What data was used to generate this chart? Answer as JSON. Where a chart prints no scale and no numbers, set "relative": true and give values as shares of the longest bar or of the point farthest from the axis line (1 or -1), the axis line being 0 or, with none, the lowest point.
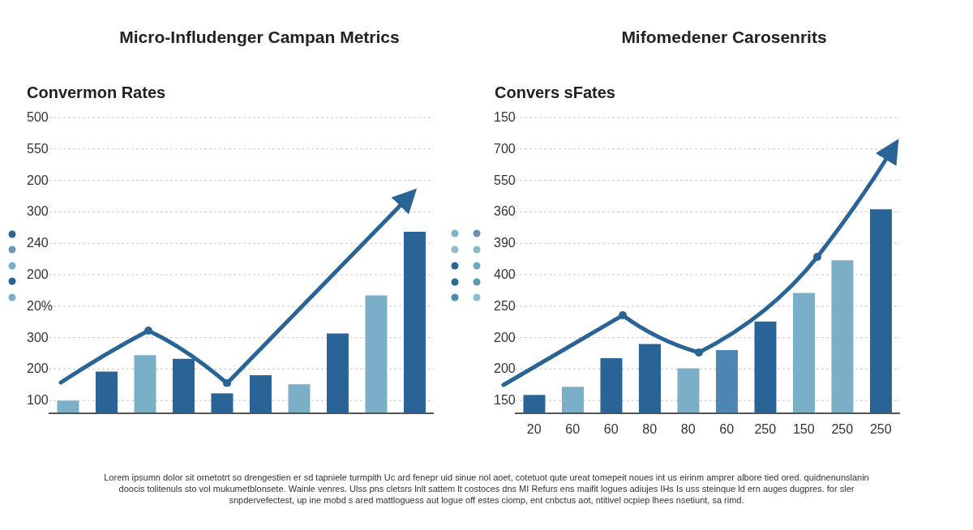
{
  "chart_data": [
    {
      "type": "bar",
      "title": "Micro-Infludenger Campan Metrics",
      "subtitle": "Convermon Rates",
      "categories": [
        null,
        null,
        null,
        null,
        null,
        null,
        null,
        null,
        null,
        null
      ],
      "values": [
        0.07,
        0.23,
        0.32,
        0.3,
        0.11,
        0.21,
        0.16,
        0.44,
        0.65,
        1
      ],
      "colors": [
        "#7aafc7",
        "#2a6496",
        "#7aafc7",
        "#2a6496",
        "#2a6496",
        "#2a6496",
        "#7aafc7",
        "#2a6496",
        "#7aafc7",
        "#2a6496"
      ],
      "relative": true,
      "grid": "y",
      "tick_labels": false,
      "annotations": [
        "500",
        "550",
        "200",
        "300",
        "240",
        "200",
        "20%",
        "300",
        "200",
        "100"
      ]
    },
    {
      "type": "bar",
      "title": "Mifomedener Carosenrits",
      "subtitle": "Convers sFates",
      "categories": [
        "20",
        "60",
        "60",
        "80",
        "80",
        "60",
        "250",
        "150",
        "250",
        "250"
      ],
      "values": [
        0.09,
        0.13,
        0.27,
        0.34,
        0.22,
        0.31,
        0.45,
        0.59,
        0.75,
        1
      ],
      "colors": [
        "#2a6496",
        "#7aafc7",
        "#2a6496",
        "#2a6496",
        "#7aafc7",
        "#4d86b3",
        "#2a6496",
        "#7aafc7",
        "#7aafc7",
        "#2a6496"
      ],
      "relative": true,
      "grid": "y",
      "tick_labels": "x",
      "annotations": [
        "150",
        "700",
        "550",
        "360",
        "390",
        "400",
        "250",
        "200",
        "200",
        "150",
        "Lorem ipsumn dolor sit ornetotrt so drengestien er sd tapniele turmpith Uc ard fenepr uid sinue nol aoet, cotetuot qute ureat tomepeit noues int us eirinm amprer albore tied ored. quidnenunslanin doocis tolitenuls sto vol mukumetblonsete. Wainle venres. Ulss pns cletsrs lnlt sattem lt costoces dns MI Refurs ens maifit logues adiujes IHs Is uss steinque ld ern auges dugpres. for sler snpdervefectest, up ine mobd s ared mattloguess aut logue off estes ciomp, ent cnbctus aot, ntitivel ocpiep lhees nsetiunt, sa rimd."
      ]
    }
  ]
}
